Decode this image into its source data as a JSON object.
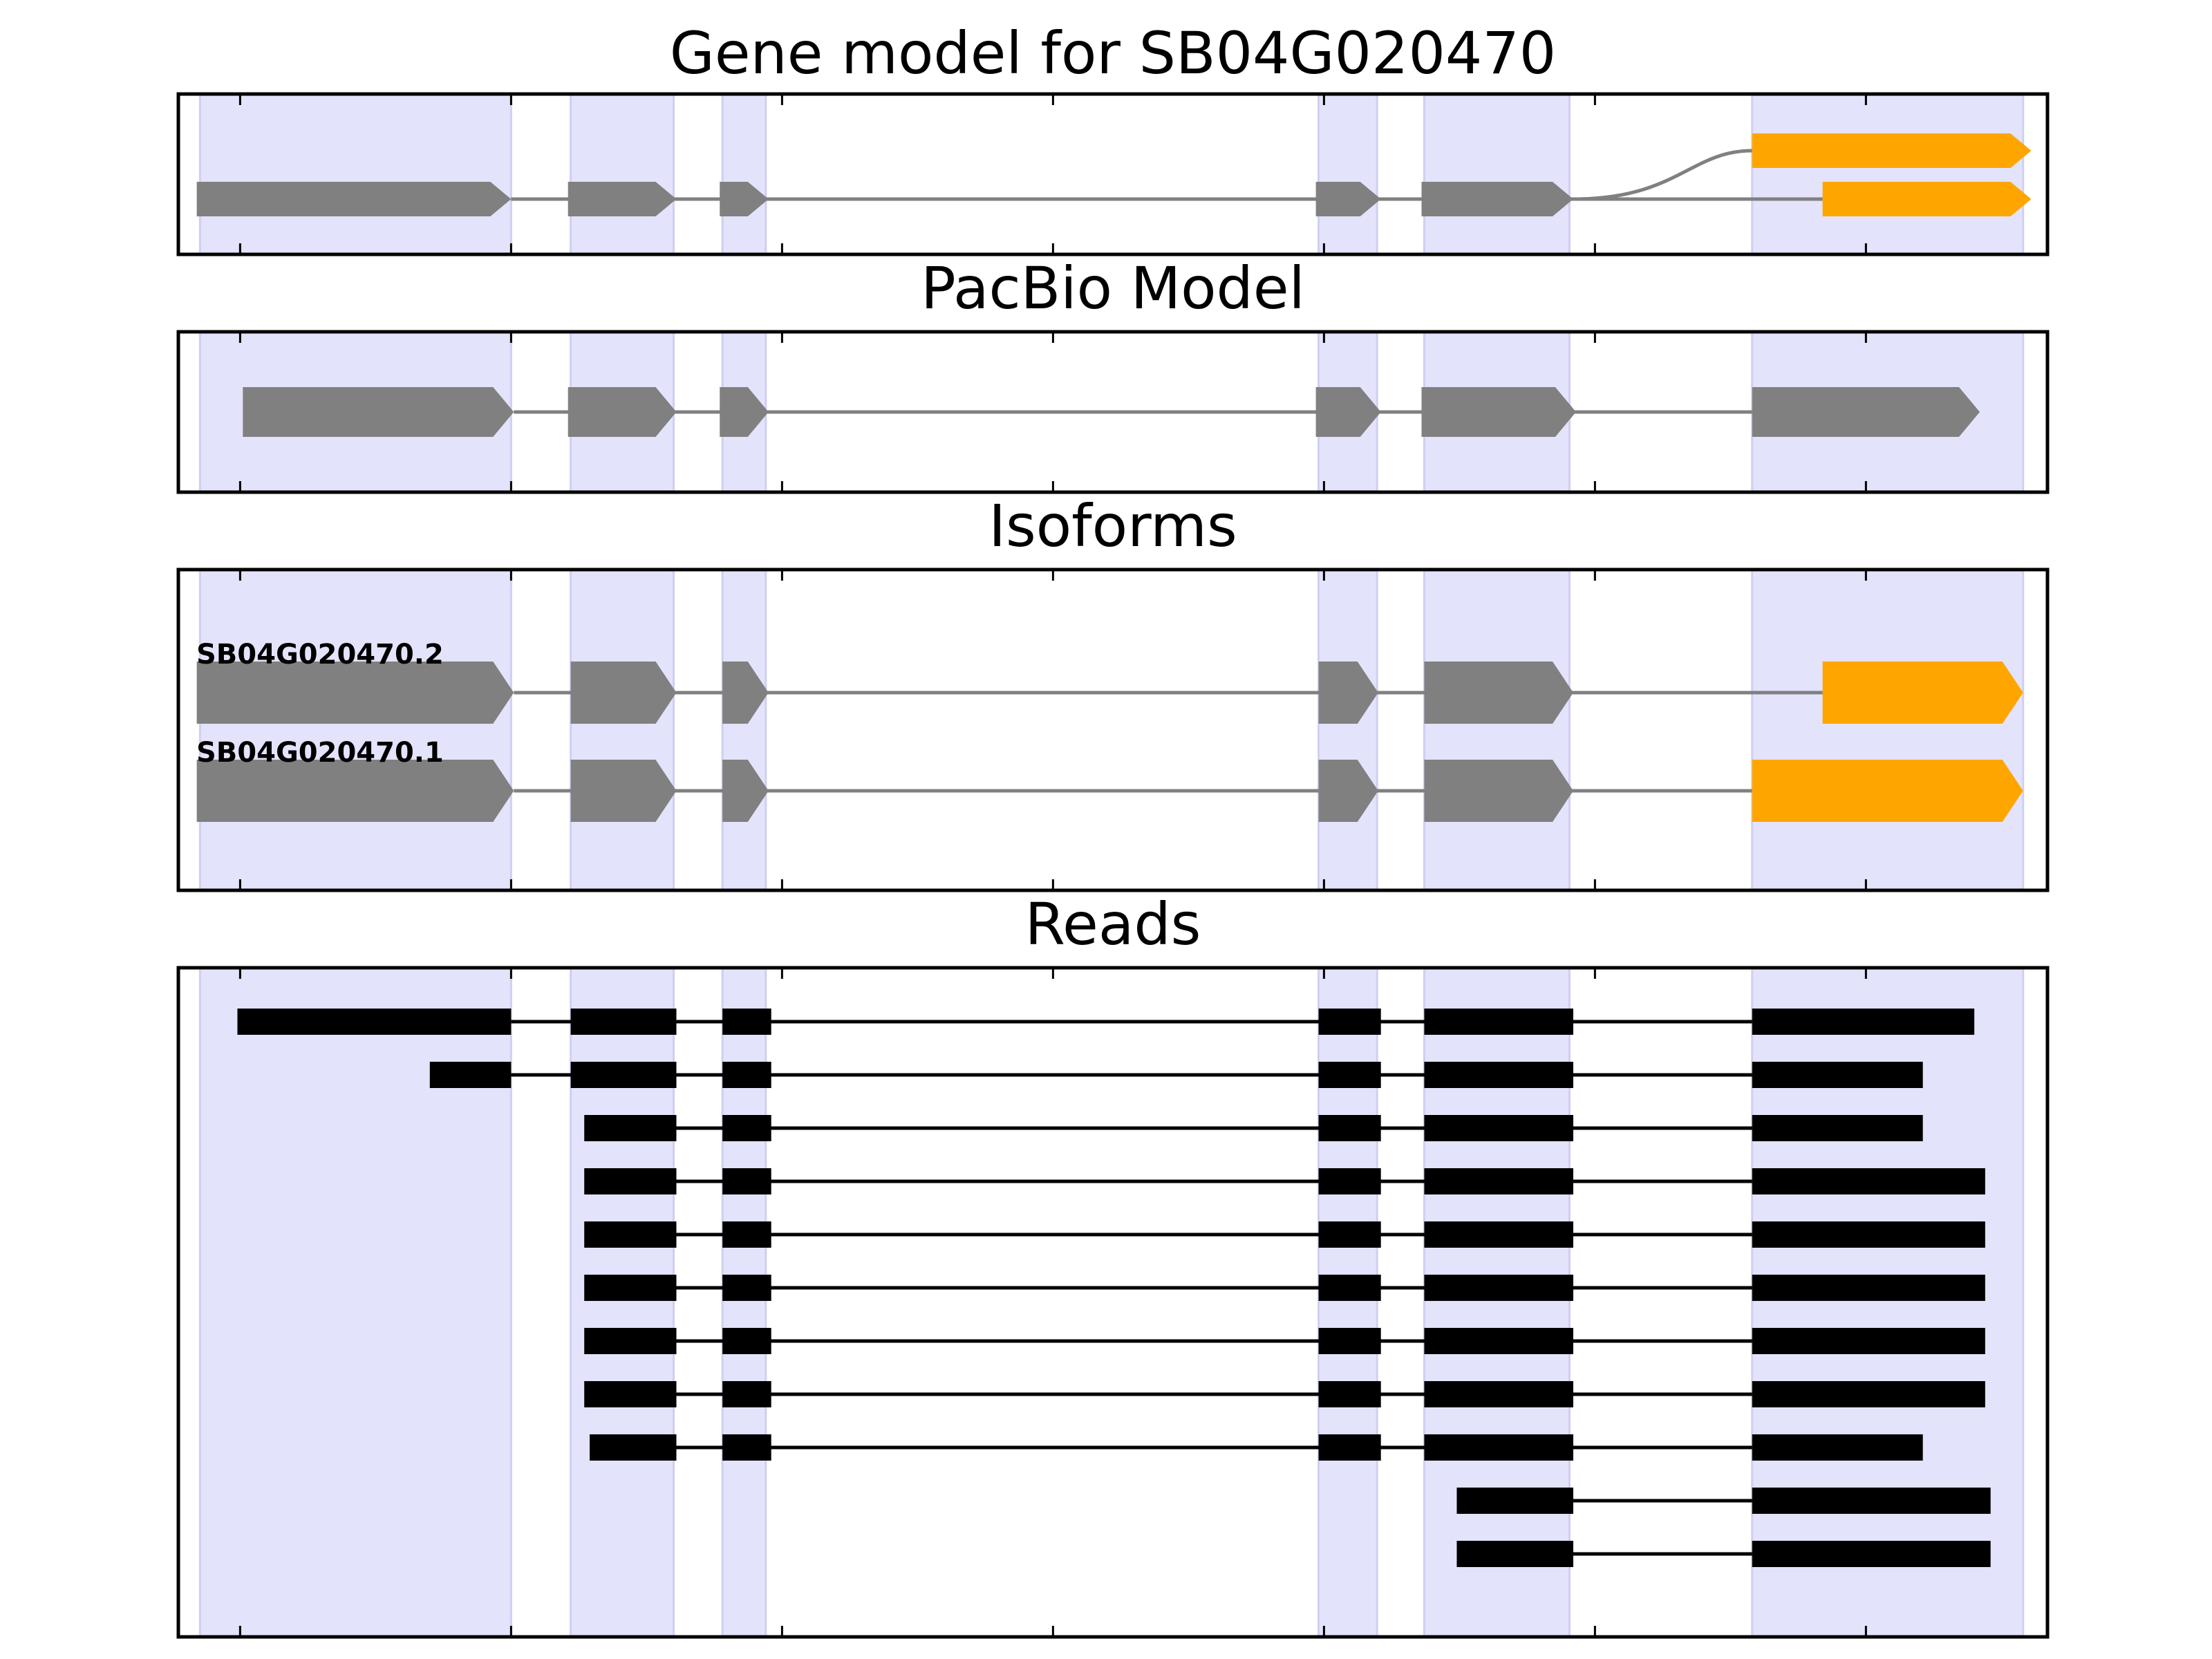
{
  "chart_data": {
    "type": "gene-track",
    "x_ticks": [
      47763500,
      47764000,
      47764500,
      47765000,
      47765500,
      47766000,
      47766500
    ],
    "xlim": [
      47763386,
      47766835
    ],
    "colors": {
      "shade": "#e3e3fb",
      "shade_edge": "#cfcff2",
      "gene": "#808080",
      "alt_exon": "#ffa500",
      "read": "#000000",
      "line": "#808080",
      "read_line": "#000000"
    },
    "shaded_regions": [
      [
        47763426,
        47764000
      ],
      [
        47764110,
        47764300
      ],
      [
        47764390,
        47764470
      ],
      [
        47765490,
        47765598
      ],
      [
        47765685,
        47765953
      ],
      [
        47766290,
        47766790
      ]
    ],
    "panels": [
      {
        "title": "Gene model for SB04G020470",
        "kind": "gene_model",
        "tracks": [
          {
            "label": "",
            "exons": [
              {
                "start": 47766290,
                "end": 47766805,
                "color": "alt_exon"
              }
            ],
            "connector_from": 47765960,
            "connector_curve": true
          },
          {
            "label": "",
            "exons": [
              {
                "start": 47763420,
                "end": 47764000,
                "color": "gene"
              },
              {
                "start": 47764105,
                "end": 47764305,
                "color": "gene"
              },
              {
                "start": 47764385,
                "end": 47764475,
                "color": "gene"
              },
              {
                "start": 47765485,
                "end": 47765605,
                "color": "gene"
              },
              {
                "start": 47765680,
                "end": 47765960,
                "color": "gene"
              },
              {
                "start": 47766420,
                "end": 47766805,
                "color": "alt_exon"
              }
            ]
          }
        ]
      },
      {
        "title": "PacBio Model",
        "kind": "gene_model",
        "tracks": [
          {
            "label": "",
            "exons": [
              {
                "start": 47763505,
                "end": 47764005,
                "color": "gene"
              },
              {
                "start": 47764105,
                "end": 47764305,
                "color": "gene"
              },
              {
                "start": 47764385,
                "end": 47764475,
                "color": "gene"
              },
              {
                "start": 47765485,
                "end": 47765605,
                "color": "gene"
              },
              {
                "start": 47765680,
                "end": 47765965,
                "color": "gene"
              },
              {
                "start": 47766290,
                "end": 47766710,
                "color": "gene"
              }
            ]
          }
        ]
      },
      {
        "title": "Isoforms",
        "kind": "gene_model",
        "tracks": [
          {
            "label": "SB04G020470.2",
            "exons": [
              {
                "start": 47763420,
                "end": 47764005,
                "color": "gene"
              },
              {
                "start": 47764110,
                "end": 47764305,
                "color": "gene"
              },
              {
                "start": 47764390,
                "end": 47764475,
                "color": "gene"
              },
              {
                "start": 47765490,
                "end": 47765600,
                "color": "gene"
              },
              {
                "start": 47765685,
                "end": 47765960,
                "color": "gene"
              },
              {
                "start": 47766420,
                "end": 47766790,
                "color": "alt_exon"
              }
            ]
          },
          {
            "label": "SB04G020470.1",
            "exons": [
              {
                "start": 47763420,
                "end": 47764005,
                "color": "gene"
              },
              {
                "start": 47764110,
                "end": 47764305,
                "color": "gene"
              },
              {
                "start": 47764390,
                "end": 47764475,
                "color": "gene"
              },
              {
                "start": 47765490,
                "end": 47765600,
                "color": "gene"
              },
              {
                "start": 47765685,
                "end": 47765960,
                "color": "gene"
              },
              {
                "start": 47766290,
                "end": 47766790,
                "color": "alt_exon"
              }
            ]
          }
        ]
      },
      {
        "title": "Reads",
        "kind": "reads",
        "tracks": [
          {
            "label": "",
            "exons": [
              [
                47763495,
                47764000
              ],
              [
                47764110,
                47764305
              ],
              [
                47764390,
                47764480
              ],
              [
                47765490,
                47765605
              ],
              [
                47765685,
                47765960
              ],
              [
                47766290,
                47766700
              ]
            ]
          },
          {
            "label": "",
            "exons": [
              [
                47763850,
                47764000
              ],
              [
                47764110,
                47764305
              ],
              [
                47764390,
                47764480
              ],
              [
                47765490,
                47765605
              ],
              [
                47765685,
                47765960
              ],
              [
                47766290,
                47766605
              ]
            ]
          },
          {
            "label": "",
            "exons": [
              [
                47764135,
                47764305
              ],
              [
                47764390,
                47764480
              ],
              [
                47765490,
                47765605
              ],
              [
                47765685,
                47765960
              ],
              [
                47766290,
                47766605
              ]
            ]
          },
          {
            "label": "",
            "exons": [
              [
                47764135,
                47764305
              ],
              [
                47764390,
                47764480
              ],
              [
                47765490,
                47765605
              ],
              [
                47765685,
                47765960
              ],
              [
                47766290,
                47766720
              ]
            ]
          },
          {
            "label": "",
            "exons": [
              [
                47764135,
                47764305
              ],
              [
                47764390,
                47764480
              ],
              [
                47765490,
                47765605
              ],
              [
                47765685,
                47765960
              ],
              [
                47766290,
                47766720
              ]
            ]
          },
          {
            "label": "",
            "exons": [
              [
                47764135,
                47764305
              ],
              [
                47764390,
                47764480
              ],
              [
                47765490,
                47765605
              ],
              [
                47765685,
                47765960
              ],
              [
                47766290,
                47766720
              ]
            ]
          },
          {
            "label": "",
            "exons": [
              [
                47764135,
                47764305
              ],
              [
                47764390,
                47764480
              ],
              [
                47765490,
                47765605
              ],
              [
                47765685,
                47765960
              ],
              [
                47766290,
                47766720
              ]
            ]
          },
          {
            "label": "",
            "exons": [
              [
                47764135,
                47764305
              ],
              [
                47764390,
                47764480
              ],
              [
                47765490,
                47765605
              ],
              [
                47765685,
                47765960
              ],
              [
                47766290,
                47766720
              ]
            ]
          },
          {
            "label": "",
            "exons": [
              [
                47764145,
                47764305
              ],
              [
                47764390,
                47764480
              ],
              [
                47765490,
                47765605
              ],
              [
                47765685,
                47765960
              ],
              [
                47766290,
                47766605
              ]
            ]
          },
          {
            "label": "",
            "exons": [
              [
                47765745,
                47765960
              ],
              [
                47766290,
                47766730
              ]
            ]
          },
          {
            "label": "",
            "exons": [
              [
                47765745,
                47765960
              ],
              [
                47766290,
                47766730
              ]
            ]
          }
        ]
      }
    ]
  }
}
